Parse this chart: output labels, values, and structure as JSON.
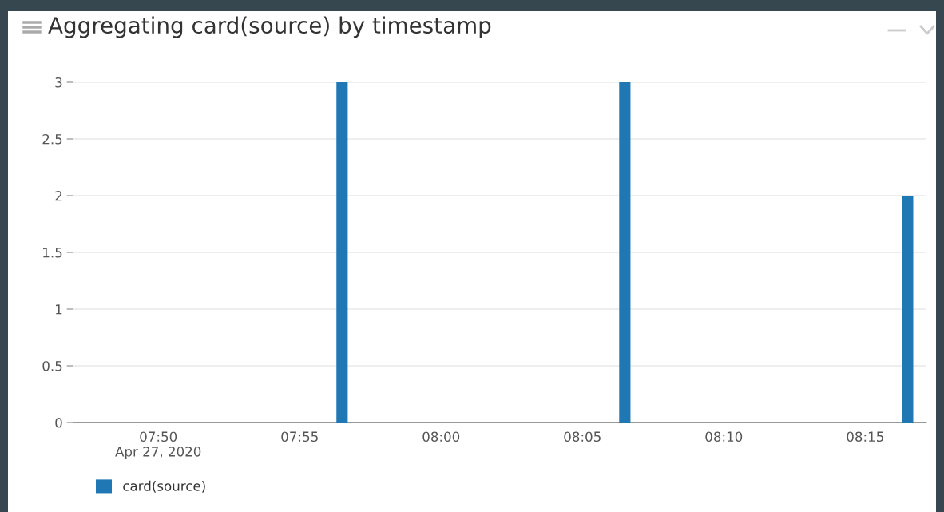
{
  "chart_data": {
    "type": "bar",
    "title": "Aggregating card(source) by timestamp",
    "x": [
      "2020-04-27T07:56:30",
      "2020-04-27T08:06:30",
      "2020-04-27T08:16:30"
    ],
    "series": [
      {
        "name": "card(source)",
        "color": "#1f77b4",
        "values": [
          3,
          3,
          2
        ]
      }
    ],
    "xlim": [
      "2020-04-27T07:47",
      "2020-04-27T08:17:10"
    ],
    "xticks": [
      {
        "value": "2020-04-27T07:50",
        "label": "07:50\nApr 27, 2020"
      },
      {
        "value": "2020-04-27T07:55",
        "label": "07:55"
      },
      {
        "value": "2020-04-27T08:00",
        "label": "08:00"
      },
      {
        "value": "2020-04-27T08:05",
        "label": "08:05"
      },
      {
        "value": "2020-04-27T08:10",
        "label": "08:10"
      },
      {
        "value": "2020-04-27T08:15",
        "label": "08:15"
      }
    ],
    "ylim": [
      0,
      3
    ],
    "yticks": [
      0,
      0.5,
      1,
      1.5,
      2,
      2.5,
      3
    ],
    "grid": "y",
    "legend": "bottom left"
  }
}
